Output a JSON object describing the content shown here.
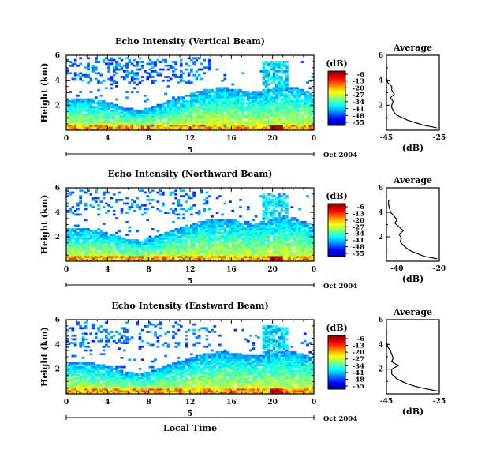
{
  "chart_data": [
    {
      "type": "heatmap",
      "title": "Echo Intensity (Vertical Beam)",
      "ylabel": "Height (km)",
      "x_ticks": [
        "0",
        "4",
        "8",
        "12",
        "16",
        "20",
        "0"
      ],
      "y_ticks": [
        "2",
        "4",
        "6"
      ],
      "xlim": [
        0,
        24
      ],
      "ylim": [
        0,
        6
      ],
      "date_marker": "5",
      "date_label": "Oct 2004",
      "colorbar": {
        "unit": "(dB)",
        "ticks": [
          "-6",
          "-13",
          "-20",
          "-27",
          "-34",
          "-41",
          "-48",
          "-55"
        ]
      },
      "average_profile": {
        "title": "Average",
        "xlabel": "(dB)",
        "x_ticks": [
          "-45",
          "-25"
        ],
        "y_ticks": [
          "2",
          "4",
          "6"
        ],
        "xlim": [
          -45,
          -25
        ],
        "ylim": [
          0,
          6
        ],
        "heights": [
          0.2,
          0.4,
          0.6,
          0.8,
          1.0,
          1.2,
          1.4,
          1.6,
          1.8,
          2.0,
          2.3,
          2.6,
          2.9,
          3.2,
          3.5,
          3.8,
          4.2,
          4.6,
          5.0
        ],
        "values": [
          -26,
          -31,
          -34,
          -37,
          -39,
          -41,
          -42,
          -42.5,
          -43,
          -43,
          -42.5,
          -43.5,
          -42,
          -43,
          -43,
          -44.5,
          -45,
          -45,
          -45
        ]
      }
    },
    {
      "type": "heatmap",
      "title": "Echo Intensity (Northward Beam)",
      "ylabel": "Height (km)",
      "x_ticks": [
        "0",
        "4",
        "8",
        "12",
        "16",
        "20",
        "0"
      ],
      "y_ticks": [
        "2",
        "4",
        "6"
      ],
      "xlim": [
        0,
        24
      ],
      "ylim": [
        0,
        6
      ],
      "date_marker": "5",
      "date_label": "Oct 2004",
      "colorbar": {
        "unit": "(dB)",
        "ticks": [
          "-6",
          "-13",
          "-20",
          "-27",
          "-34",
          "-41",
          "-48",
          "-55"
        ]
      },
      "average_profile": {
        "title": "Average",
        "xlabel": "(dB)",
        "x_ticks": [
          "-40",
          "-20"
        ],
        "y_ticks": [
          "2",
          "4",
          "6"
        ],
        "xlim": [
          -45,
          -20
        ],
        "ylim": [
          0,
          6
        ],
        "heights": [
          0.2,
          0.4,
          0.6,
          0.8,
          1.0,
          1.3,
          1.6,
          1.9,
          2.2,
          2.5,
          2.8,
          3.1,
          3.4,
          3.7,
          4.0,
          4.3,
          4.6,
          5.0
        ],
        "values": [
          -21,
          -27,
          -30,
          -33,
          -35,
          -37,
          -38.5,
          -38,
          -39,
          -37,
          -39,
          -41,
          -40,
          -41.5,
          -43,
          -43.5,
          -44,
          -44
        ]
      }
    },
    {
      "type": "heatmap",
      "title": "Echo Intensity (Eastward Beam)",
      "ylabel": "Height (km)",
      "xlabel": "Local Time",
      "x_ticks": [
        "0",
        "4",
        "8",
        "12",
        "16",
        "20",
        "0"
      ],
      "y_ticks": [
        "2",
        "4",
        "6"
      ],
      "xlim": [
        0,
        24
      ],
      "ylim": [
        0,
        6
      ],
      "date_marker": "5",
      "date_label": "Oct 2004",
      "colorbar": {
        "unit": "(dB)",
        "ticks": [
          "-6",
          "-13",
          "-20",
          "-27",
          "-34",
          "-41",
          "-48",
          "-55"
        ]
      },
      "average_profile": {
        "title": "Average",
        "xlabel": "(dB)",
        "x_ticks": [
          "-45",
          "-25"
        ],
        "y_ticks": [
          "2",
          "4",
          "6"
        ],
        "xlim": [
          -45,
          -25
        ],
        "ylim": [
          0,
          6
        ],
        "heights": [
          0.2,
          0.4,
          0.6,
          0.8,
          1.0,
          1.2,
          1.4,
          1.6,
          1.8,
          2.0,
          2.3,
          2.6,
          2.9,
          3.2,
          3.5,
          3.8,
          4.2,
          4.6,
          5.0
        ],
        "values": [
          -25,
          -30,
          -34,
          -37,
          -39,
          -41,
          -42,
          -43,
          -43,
          -43,
          -40.5,
          -43,
          -42.5,
          -43,
          -43.5,
          -44.5,
          -45,
          -45,
          -45
        ]
      }
    }
  ]
}
